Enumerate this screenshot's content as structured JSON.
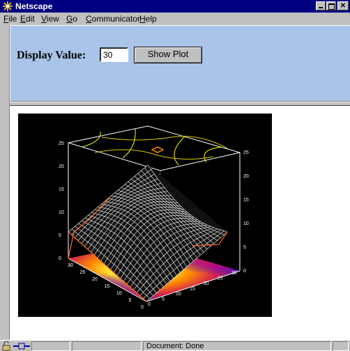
{
  "window": {
    "title": "Netscape"
  },
  "menu": [
    {
      "key": "F",
      "rest": "ile"
    },
    {
      "key": "E",
      "rest": "dit"
    },
    {
      "key": "V",
      "rest": "iew"
    },
    {
      "key": "G",
      "rest": "o"
    },
    {
      "key": "C",
      "rest": "ommunicator"
    },
    {
      "key": "H",
      "rest": "elp"
    }
  ],
  "form": {
    "display_label": "Display Value:",
    "display_value": "30",
    "show_button": "Show Plot"
  },
  "plot": {
    "type": "3d-surface",
    "z_ticks_left": [
      "0",
      "5",
      "10",
      "15",
      "20",
      "25"
    ],
    "z_ticks_right": [
      "0",
      "5",
      "10",
      "15",
      "20",
      "25"
    ],
    "x_ticks": [
      "0",
      "5",
      "10",
      "15",
      "20",
      "25",
      "30"
    ],
    "y_ticks": [
      "0",
      "5",
      "10",
      "15",
      "20",
      "25",
      "30"
    ],
    "colors": {
      "background": "#000000",
      "mesh": "#ffffff",
      "contour": "#ffff00",
      "edge": "#ff6a2a"
    }
  },
  "status": {
    "text": "Document: Done"
  },
  "colors": {
    "title_bar": "#000080",
    "panel": "#a9c4e8",
    "chrome": "#c0c0c0"
  }
}
